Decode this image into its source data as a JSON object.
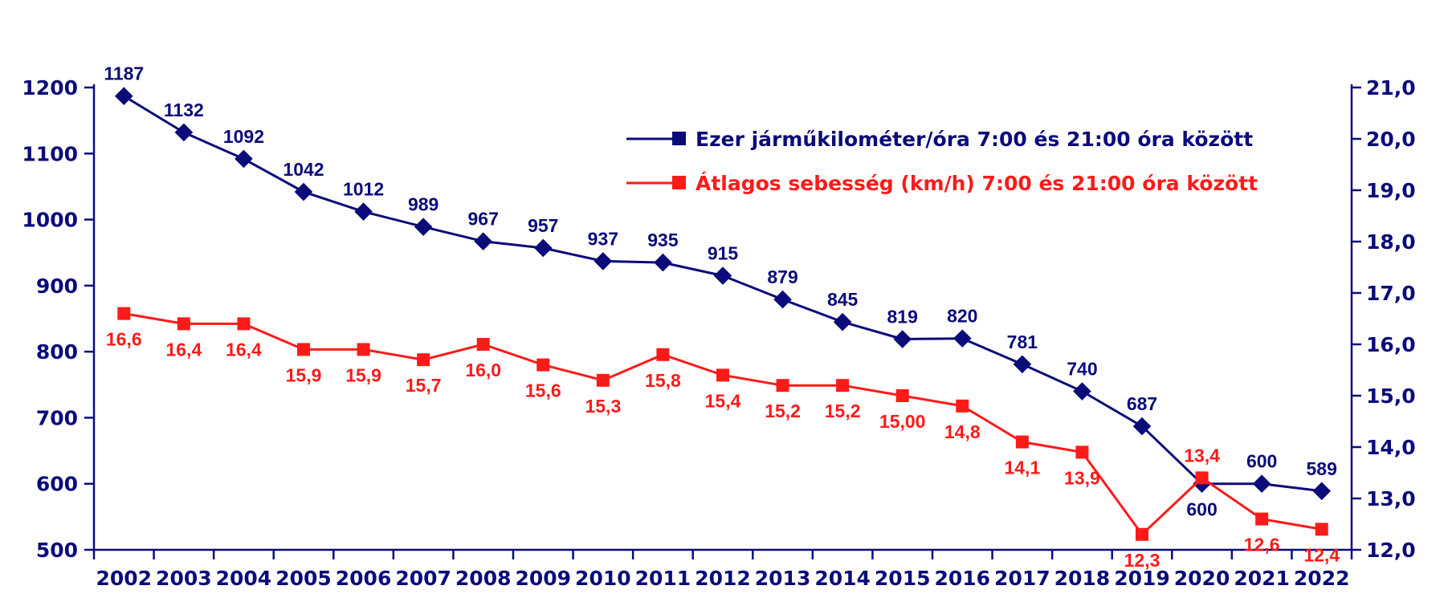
{
  "chart_data": {
    "type": "line",
    "categories": [
      "2002",
      "2003",
      "2004",
      "2005",
      "2006",
      "2007",
      "2008",
      "2009",
      "2010",
      "2011",
      "2012",
      "2013",
      "2014",
      "2015",
      "2016",
      "2017",
      "2018",
      "2019",
      "2020",
      "2021",
      "2022"
    ],
    "y_left": {
      "min": 500,
      "max": 1200,
      "ticks": [
        "500",
        "600",
        "700",
        "800",
        "900",
        "1000",
        "1100",
        "1200"
      ]
    },
    "y_right": {
      "min": 12.0,
      "max": 21.0,
      "ticks": [
        "12,0",
        "13,0",
        "14,0",
        "15,0",
        "16,0",
        "17,0",
        "18,0",
        "19,0",
        "20,0",
        "21,0"
      ]
    },
    "series": [
      {
        "name": "Ezer járműkilométer/óra 7:00 és 21:00 óra között",
        "axis": "left",
        "color": "#0b0b7a",
        "values": [
          1187,
          1132,
          1092,
          1042,
          1012,
          989,
          967,
          957,
          937,
          935,
          915,
          879,
          845,
          819,
          820,
          781,
          740,
          687,
          600,
          600,
          589
        ],
        "labels": [
          "1187",
          "1132",
          "1092",
          "1042",
          "1012",
          "989",
          "967",
          "957",
          "937",
          "935",
          "915",
          "879",
          "845",
          "819",
          "820",
          "781",
          "740",
          "687",
          "600",
          "600",
          "589"
        ]
      },
      {
        "name": "Átlagos sebesség (km/h) 7:00 és 21:00 óra között",
        "axis": "right",
        "color": "#ff1a1a",
        "values": [
          16.6,
          16.4,
          16.4,
          15.9,
          15.9,
          15.7,
          16.0,
          15.6,
          15.3,
          15.8,
          15.4,
          15.2,
          15.2,
          15.0,
          14.8,
          14.1,
          13.9,
          12.3,
          13.4,
          12.6,
          12.4
        ],
        "labels": [
          "16,6",
          "16,4",
          "16,4",
          "15,9",
          "15,9",
          "15,7",
          "16,0",
          "15,6",
          "15,3",
          "15,8",
          "15,4",
          "15,2",
          "15,2",
          "15,00",
          "14,8",
          "14,1",
          "13,9",
          "12,3",
          "13,4",
          "12,6",
          "12,4"
        ]
      }
    ],
    "legend_position": "top-center",
    "grid": false
  }
}
